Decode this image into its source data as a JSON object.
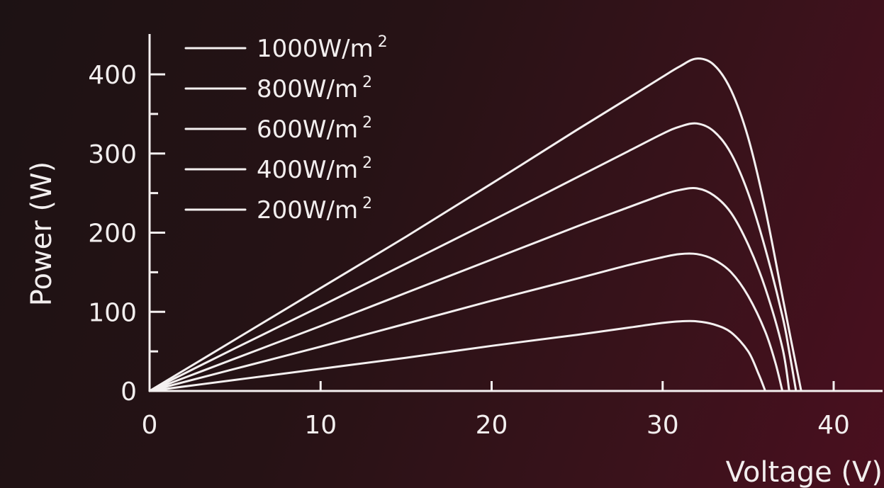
{
  "chart_data": {
    "type": "line",
    "title": "",
    "xlabel": "Voltage (V)",
    "ylabel": "Power  (W)",
    "xlim": [
      0,
      43
    ],
    "ylim": [
      0,
      450
    ],
    "xticks": [
      0,
      10,
      20,
      30,
      40
    ],
    "yticks": [
      0,
      100,
      200,
      300,
      400
    ],
    "legend_position": "top-left",
    "line_color": "#f4f0f0",
    "series": [
      {
        "name": "1000W/m",
        "sup": "2",
        "x": [
          0,
          5,
          10,
          15,
          20,
          25,
          28,
          30,
          31,
          32,
          33,
          34,
          35,
          36,
          37,
          37.5,
          38.1
        ],
        "y": [
          0,
          65,
          130,
          195,
          262,
          330,
          370,
          397,
          410,
          420,
          412,
          380,
          320,
          230,
          120,
          65,
          0
        ]
      },
      {
        "name": "800W/m",
        "sup": "2",
        "x": [
          0,
          5,
          10,
          15,
          20,
          25,
          28,
          30,
          31,
          32,
          33,
          34,
          35,
          36,
          37,
          37.4,
          37.8
        ],
        "y": [
          0,
          54,
          107,
          161,
          215,
          270,
          303,
          325,
          334,
          338,
          328,
          300,
          250,
          180,
          95,
          50,
          0
        ]
      },
      {
        "name": "600W/m",
        "sup": "2",
        "x": [
          0,
          5,
          10,
          15,
          20,
          25,
          28,
          30,
          31,
          32,
          33,
          34,
          35,
          36,
          37,
          37.4
        ],
        "y": [
          0,
          41,
          82,
          124,
          166,
          208,
          232,
          248,
          254,
          256,
          247,
          225,
          185,
          130,
          55,
          0
        ]
      },
      {
        "name": "400W/m",
        "sup": "2",
        "x": [
          0,
          5,
          10,
          15,
          20,
          25,
          28,
          30,
          31,
          32,
          33,
          34,
          35,
          36,
          36.6,
          37
        ],
        "y": [
          0,
          28,
          56,
          85,
          114,
          142,
          159,
          169,
          173,
          173,
          166,
          150,
          120,
          75,
          35,
          0
        ]
      },
      {
        "name": "200W/m",
        "sup": "2",
        "x": [
          0,
          5,
          10,
          15,
          20,
          25,
          28,
          30,
          31,
          32,
          33,
          34,
          35,
          35.6,
          36
        ],
        "y": [
          0,
          14,
          28,
          42,
          57,
          71,
          80,
          86,
          88,
          88,
          84,
          74,
          50,
          22,
          0
        ]
      }
    ]
  }
}
